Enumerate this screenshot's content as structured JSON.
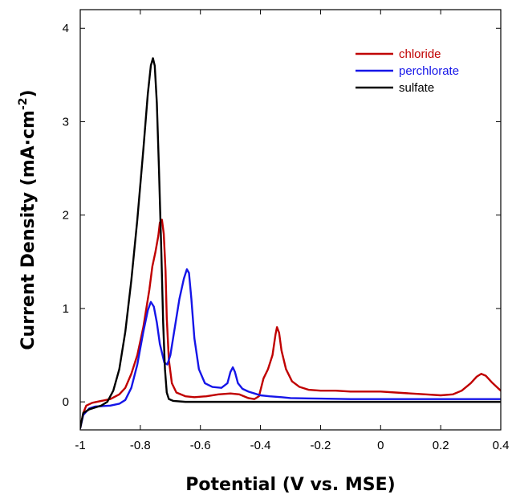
{
  "chart_data": {
    "type": "line",
    "xlabel": "Potential (V vs. MSE)",
    "ylabel": "Current Density (mA·cm",
    "ylabel_sup": "-2",
    "ylabel_end": ")",
    "xlim": [
      -1,
      0.4
    ],
    "ylim": [
      -0.3,
      4.2
    ],
    "x_ticks": [
      -1,
      -0.8,
      -0.6,
      -0.4,
      -0.2,
      0,
      0.2,
      0.4
    ],
    "x_tick_labels": [
      "-1",
      "-0.8",
      "-0.6",
      "-0.4",
      "-0.2",
      "0",
      "0.2",
      "0.4"
    ],
    "y_ticks": [
      0,
      1,
      2,
      3,
      4
    ],
    "y_tick_labels": [
      "0",
      "1",
      "2",
      "3",
      "4"
    ],
    "grid": false,
    "legend_position": "top-right",
    "series": [
      {
        "name": "chloride",
        "color": "#c00000",
        "points": [
          [
            -1.0,
            -0.28
          ],
          [
            -0.99,
            -0.12
          ],
          [
            -0.98,
            -0.04
          ],
          [
            -0.96,
            -0.01
          ],
          [
            -0.93,
            0.01
          ],
          [
            -0.9,
            0.03
          ],
          [
            -0.87,
            0.08
          ],
          [
            -0.85,
            0.15
          ],
          [
            -0.83,
            0.3
          ],
          [
            -0.81,
            0.5
          ],
          [
            -0.79,
            0.8
          ],
          [
            -0.77,
            1.2
          ],
          [
            -0.76,
            1.45
          ],
          [
            -0.75,
            1.6
          ],
          [
            -0.74,
            1.78
          ],
          [
            -0.735,
            1.92
          ],
          [
            -0.728,
            1.95
          ],
          [
            -0.722,
            1.8
          ],
          [
            -0.716,
            1.4
          ],
          [
            -0.712,
            0.9
          ],
          [
            -0.705,
            0.45
          ],
          [
            -0.695,
            0.2
          ],
          [
            -0.68,
            0.1
          ],
          [
            -0.65,
            0.06
          ],
          [
            -0.62,
            0.05
          ],
          [
            -0.58,
            0.06
          ],
          [
            -0.54,
            0.08
          ],
          [
            -0.5,
            0.09
          ],
          [
            -0.47,
            0.08
          ],
          [
            -0.44,
            0.04
          ],
          [
            -0.42,
            0.03
          ],
          [
            -0.405,
            0.06
          ],
          [
            -0.39,
            0.25
          ],
          [
            -0.375,
            0.35
          ],
          [
            -0.36,
            0.5
          ],
          [
            -0.35,
            0.72
          ],
          [
            -0.345,
            0.8
          ],
          [
            -0.338,
            0.74
          ],
          [
            -0.33,
            0.55
          ],
          [
            -0.315,
            0.35
          ],
          [
            -0.295,
            0.22
          ],
          [
            -0.27,
            0.16
          ],
          [
            -0.24,
            0.13
          ],
          [
            -0.2,
            0.12
          ],
          [
            -0.15,
            0.12
          ],
          [
            -0.1,
            0.11
          ],
          [
            -0.05,
            0.11
          ],
          [
            0.0,
            0.11
          ],
          [
            0.05,
            0.1
          ],
          [
            0.1,
            0.09
          ],
          [
            0.15,
            0.08
          ],
          [
            0.2,
            0.07
          ],
          [
            0.24,
            0.08
          ],
          [
            0.27,
            0.12
          ],
          [
            0.3,
            0.2
          ],
          [
            0.32,
            0.27
          ],
          [
            0.335,
            0.3
          ],
          [
            0.35,
            0.28
          ],
          [
            0.37,
            0.21
          ],
          [
            0.39,
            0.15
          ],
          [
            0.4,
            0.12
          ]
        ]
      },
      {
        "name": "perchlorate",
        "color": "#1515e8",
        "points": [
          [
            -1.0,
            -0.28
          ],
          [
            -0.99,
            -0.14
          ],
          [
            -0.97,
            -0.07
          ],
          [
            -0.95,
            -0.05
          ],
          [
            -0.9,
            -0.04
          ],
          [
            -0.87,
            -0.02
          ],
          [
            -0.85,
            0.02
          ],
          [
            -0.83,
            0.15
          ],
          [
            -0.81,
            0.4
          ],
          [
            -0.79,
            0.75
          ],
          [
            -0.775,
            0.98
          ],
          [
            -0.765,
            1.07
          ],
          [
            -0.755,
            1.02
          ],
          [
            -0.745,
            0.85
          ],
          [
            -0.735,
            0.62
          ],
          [
            -0.72,
            0.42
          ],
          [
            -0.71,
            0.4
          ],
          [
            -0.7,
            0.5
          ],
          [
            -0.685,
            0.8
          ],
          [
            -0.67,
            1.1
          ],
          [
            -0.655,
            1.32
          ],
          [
            -0.645,
            1.42
          ],
          [
            -0.638,
            1.38
          ],
          [
            -0.63,
            1.1
          ],
          [
            -0.62,
            0.68
          ],
          [
            -0.605,
            0.35
          ],
          [
            -0.585,
            0.2
          ],
          [
            -0.56,
            0.16
          ],
          [
            -0.53,
            0.15
          ],
          [
            -0.51,
            0.2
          ],
          [
            -0.5,
            0.32
          ],
          [
            -0.492,
            0.37
          ],
          [
            -0.485,
            0.32
          ],
          [
            -0.475,
            0.2
          ],
          [
            -0.46,
            0.14
          ],
          [
            -0.44,
            0.11
          ],
          [
            -0.42,
            0.09
          ],
          [
            -0.4,
            0.07
          ],
          [
            -0.37,
            0.06
          ],
          [
            -0.33,
            0.05
          ],
          [
            -0.3,
            0.04
          ],
          [
            -0.2,
            0.035
          ],
          [
            -0.1,
            0.03
          ],
          [
            0.0,
            0.03
          ],
          [
            0.1,
            0.03
          ],
          [
            0.2,
            0.03
          ],
          [
            0.3,
            0.03
          ],
          [
            0.4,
            0.03
          ]
        ]
      },
      {
        "name": "sulfate",
        "color": "#000000",
        "points": [
          [
            -1.0,
            -0.28
          ],
          [
            -0.99,
            -0.12
          ],
          [
            -0.97,
            -0.08
          ],
          [
            -0.95,
            -0.06
          ],
          [
            -0.93,
            -0.04
          ],
          [
            -0.91,
            0.0
          ],
          [
            -0.89,
            0.12
          ],
          [
            -0.87,
            0.35
          ],
          [
            -0.85,
            0.75
          ],
          [
            -0.83,
            1.3
          ],
          [
            -0.81,
            1.95
          ],
          [
            -0.79,
            2.7
          ],
          [
            -0.775,
            3.3
          ],
          [
            -0.765,
            3.6
          ],
          [
            -0.758,
            3.68
          ],
          [
            -0.752,
            3.6
          ],
          [
            -0.745,
            3.2
          ],
          [
            -0.738,
            2.5
          ],
          [
            -0.73,
            1.6
          ],
          [
            -0.724,
            0.85
          ],
          [
            -0.718,
            0.35
          ],
          [
            -0.712,
            0.1
          ],
          [
            -0.705,
            0.03
          ],
          [
            -0.69,
            0.01
          ],
          [
            -0.65,
            0.0
          ],
          [
            -0.5,
            0.0
          ],
          [
            -0.2,
            0.0
          ],
          [
            0.1,
            0.0
          ],
          [
            0.4,
            0.0
          ]
        ]
      }
    ]
  }
}
